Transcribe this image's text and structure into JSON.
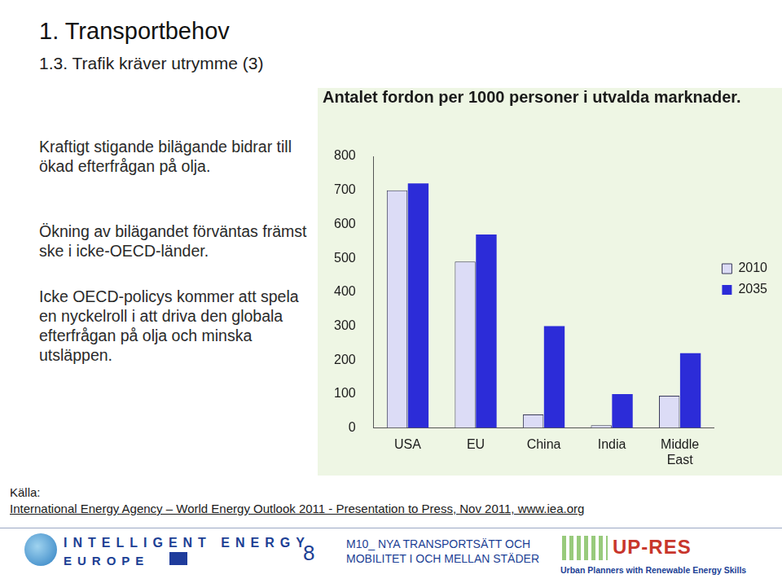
{
  "chart_data": {
    "type": "bar",
    "title": "Antalet fordon per 1000 personer i utvalda marknader.",
    "categories": [
      "USA",
      "EU",
      "China",
      "India",
      "Middle East"
    ],
    "series": [
      {
        "name": "2010",
        "color": "#dcdcf6",
        "values": [
          700,
          490,
          40,
          8,
          95
        ]
      },
      {
        "name": "2035",
        "color": "#2c2cd8",
        "values": [
          720,
          570,
          300,
          100,
          220
        ]
      }
    ],
    "ylim": [
      0,
      800
    ],
    "yticks": [
      0,
      100,
      200,
      300,
      400,
      500,
      600,
      700,
      800
    ],
    "grid": false,
    "legend": "right",
    "data_labels": false
  },
  "slide": {
    "title": "1. Transportbehov",
    "subtitle": "1.3. Trafik kräver utrymme (3)",
    "bullets": [
      "Kraftigt stigande bilägande bidrar till ökad efterfrågan på olja.",
      "Ökning av bilägandet förväntas främst ske i icke-OECD-länder.",
      "Icke OECD-policys kommer att spela en nyckelroll i att driva den globala efterfrågan på olja och minska utsläppen."
    ],
    "source_label": "Källa:",
    "source": "International Energy Agency – World Energy Outlook 2011 - Presentation to Press,  Nov 2011, www.iea.org",
    "page_number": "8",
    "footer": [
      "M10_ NYA TRANSPORTSÄTT OCH",
      "MOBILITET I OCH MELLAN STÄDER"
    ],
    "logo_left": [
      "INTELLIGENT ENERGY",
      "EUROPE"
    ],
    "logo_right": [
      "UP-RES",
      "Urban Planners with Renewable Energy Skills"
    ]
  }
}
